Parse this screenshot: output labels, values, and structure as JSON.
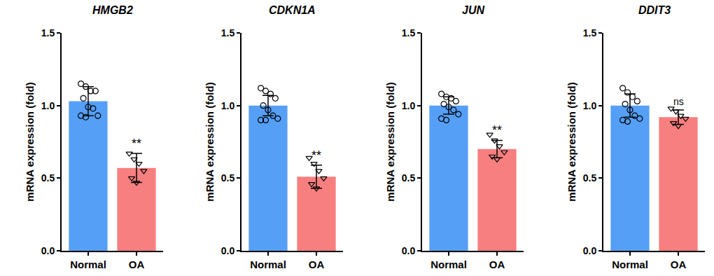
{
  "chart_data": [
    {
      "type": "bar",
      "title": "HMGB2",
      "y_label": "mRNA expression (fold)",
      "categories": [
        "Normal",
        "OA"
      ],
      "values": [
        1.03,
        0.57
      ],
      "errors": [
        0.1,
        0.1
      ],
      "colors": [
        "#559ff7",
        "#f87f7f"
      ],
      "points": [
        {
          "marker": "circle-open",
          "values": [
            1.15,
            1.13,
            1.1,
            1.1,
            1.05,
            0.99,
            0.98,
            0.93,
            0.93,
            0.92
          ]
        },
        {
          "marker": "triangle-down-open",
          "values": [
            0.67,
            0.63,
            0.6,
            0.55,
            0.5,
            0.47
          ]
        }
      ],
      "annotations": [
        {
          "category": "OA",
          "text": "**"
        }
      ],
      "ylim": [
        0,
        1.5
      ],
      "yticks": [
        {
          "value": 0,
          "label": "0.0"
        },
        {
          "value": 0.5,
          "label": "0.5"
        },
        {
          "value": 1,
          "label": "1.0"
        },
        {
          "value": 1.5,
          "label": "1.5"
        }
      ]
    },
    {
      "type": "bar",
      "title": "CDKN1A",
      "y_label": "mRNA expression (fold)",
      "categories": [
        "Normal",
        "OA"
      ],
      "values": [
        1.0,
        0.51
      ],
      "errors": [
        0.07,
        0.08
      ],
      "colors": [
        "#559ff7",
        "#f87f7f"
      ],
      "points": [
        {
          "marker": "circle-open",
          "values": [
            1.12,
            1.1,
            1.08,
            1.05,
            1.0,
            0.97,
            0.93,
            0.91,
            0.9,
            0.9
          ]
        },
        {
          "marker": "triangle-down-open",
          "values": [
            0.64,
            0.6,
            0.55,
            0.5,
            0.46,
            0.43
          ]
        }
      ],
      "annotations": [
        {
          "category": "OA",
          "text": "**"
        }
      ],
      "ylim": [
        0,
        1.5
      ],
      "yticks": [
        {
          "value": 0,
          "label": "0.0"
        },
        {
          "value": 0.5,
          "label": "0.5"
        },
        {
          "value": 1,
          "label": "1.0"
        },
        {
          "value": 1.5,
          "label": "1.5"
        }
      ]
    },
    {
      "type": "bar",
      "title": "JUN",
      "y_label": "mRNA expression (fold)",
      "categories": [
        "Normal",
        "OA"
      ],
      "values": [
        1.0,
        0.7
      ],
      "errors": [
        0.06,
        0.06
      ],
      "colors": [
        "#559ff7",
        "#f87f7f"
      ],
      "points": [
        {
          "marker": "circle-open",
          "values": [
            1.08,
            1.06,
            1.05,
            1.03,
            1.01,
            0.99,
            0.97,
            0.94,
            0.91,
            0.9
          ]
        },
        {
          "marker": "triangle-down-open",
          "values": [
            0.8,
            0.76,
            0.72,
            0.68,
            0.65,
            0.63
          ]
        }
      ],
      "annotations": [
        {
          "category": "OA",
          "text": "**"
        }
      ],
      "ylim": [
        0,
        1.5
      ],
      "yticks": [
        {
          "value": 0,
          "label": "0.0"
        },
        {
          "value": 0.5,
          "label": "0.5"
        },
        {
          "value": 1,
          "label": "1.0"
        },
        {
          "value": 1.5,
          "label": "1.5"
        }
      ]
    },
    {
      "type": "bar",
      "title": "DDIT3",
      "y_label": "mRNA expression (fold)",
      "categories": [
        "Normal",
        "OA"
      ],
      "values": [
        1.0,
        0.92
      ],
      "errors": [
        0.08,
        0.05
      ],
      "colors": [
        "#559ff7",
        "#f87f7f"
      ],
      "points": [
        {
          "marker": "circle-open",
          "values": [
            1.12,
            1.09,
            1.06,
            1.03,
            1.01,
            0.97,
            0.93,
            0.91,
            0.9,
            0.89
          ]
        },
        {
          "marker": "triangle-down-open",
          "values": [
            0.98,
            0.96,
            0.93,
            0.91,
            0.88,
            0.86
          ]
        }
      ],
      "annotations": [
        {
          "category": "OA",
          "text": "ns"
        }
      ],
      "ylim": [
        0,
        1.5
      ],
      "yticks": [
        {
          "value": 0,
          "label": "0.0"
        },
        {
          "value": 0.5,
          "label": "0.5"
        },
        {
          "value": 1,
          "label": "1.0"
        },
        {
          "value": 1.5,
          "label": "1.5"
        }
      ]
    }
  ]
}
